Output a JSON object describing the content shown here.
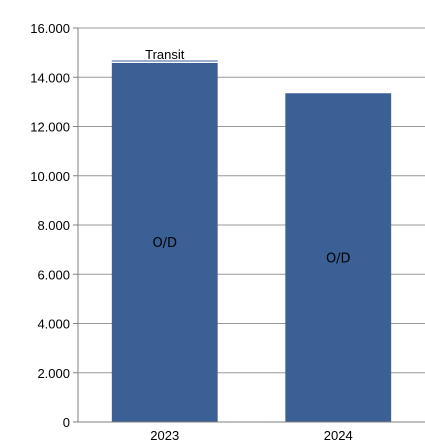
{
  "chart_data": {
    "type": "bar",
    "stacked": true,
    "categories": [
      "2023",
      "2024"
    ],
    "series": [
      {
        "name": "O/D",
        "values": [
          14600,
          13350
        ],
        "color": "#3a6096"
      },
      {
        "name": "Transit",
        "values": [
          100,
          0
        ],
        "color": "#9aaecf"
      }
    ],
    "segment_labels": [
      {
        "category": "2023",
        "series": "O/D",
        "text": "O/D"
      },
      {
        "category": "2024",
        "series": "O/D",
        "text": "O/D"
      },
      {
        "category": "2023",
        "series": "Transit",
        "text": "Transit"
      }
    ],
    "ylim": [
      0,
      16000
    ],
    "ytick_labels": [
      "0",
      "2.000",
      "4.000",
      "6.000",
      "8.000",
      "10.000",
      "12.000",
      "14.000",
      "16.000"
    ],
    "ytick_values": [
      0,
      2000,
      4000,
      6000,
      8000,
      10000,
      12000,
      14000,
      16000
    ],
    "grid": true,
    "legend": "none",
    "grid_color": "#999999",
    "axis_color": "#808080"
  }
}
